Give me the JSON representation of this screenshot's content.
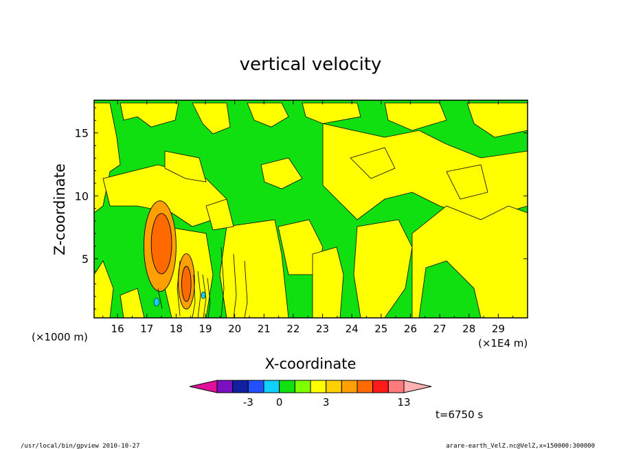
{
  "chart_data": {
    "type": "heatmap",
    "title": "vertical velocity",
    "xlabel": "X-coordinate",
    "ylabel": "Z-coordinate",
    "x_ticks": [
      "16",
      "17",
      "18",
      "19",
      "20",
      "21",
      "22",
      "23",
      "24",
      "25",
      "26",
      "27",
      "28",
      "29"
    ],
    "x_tick_values": [
      16,
      17,
      18,
      19,
      20,
      21,
      22,
      23,
      24,
      25,
      26,
      27,
      28,
      29
    ],
    "x_unit": "(×1E4 m)",
    "y_ticks": [
      "5",
      "10",
      "15"
    ],
    "y_tick_values": [
      5,
      10,
      15
    ],
    "y_unit": "(×1000 m)",
    "xlim": [
      15.2,
      30.0
    ],
    "ylim": [
      0.3,
      17.6
    ],
    "colorbar": {
      "labels": [
        "-3",
        "0",
        "3",
        "13"
      ],
      "colors": [
        "#e0109a",
        "#7a10c0",
        "#1020a0",
        "#2050ff",
        "#10d0ff",
        "#10e010",
        "#80ff00",
        "#ffff00",
        "#ffd000",
        "#ffa000",
        "#ff6a00",
        "#ff1a1a",
        "#ff7a7a",
        "#ffb0b0"
      ]
    },
    "time_label": "t=6750 s",
    "regions": [
      {
        "level": 2,
        "color": "#ffa000",
        "cx": 17.45,
        "cy": 6.0,
        "rx": 0.55,
        "ry": 3.6
      },
      {
        "level": 3,
        "color": "#ff6a00",
        "cx": 17.5,
        "cy": 6.2,
        "rx": 0.35,
        "ry": 2.4
      },
      {
        "level": 2,
        "color": "#ffa000",
        "cx": 18.35,
        "cy": 3.2,
        "rx": 0.28,
        "ry": 2.2
      },
      {
        "level": 3,
        "color": "#ff6a00",
        "cx": 18.35,
        "cy": 3.0,
        "rx": 0.16,
        "ry": 1.4
      }
    ]
  },
  "footer": {
    "left": "/usr/local/bin/gpview   2010-10-27",
    "right": "arare-earth_VelZ.nc@VelZ,x=150000:300000"
  }
}
